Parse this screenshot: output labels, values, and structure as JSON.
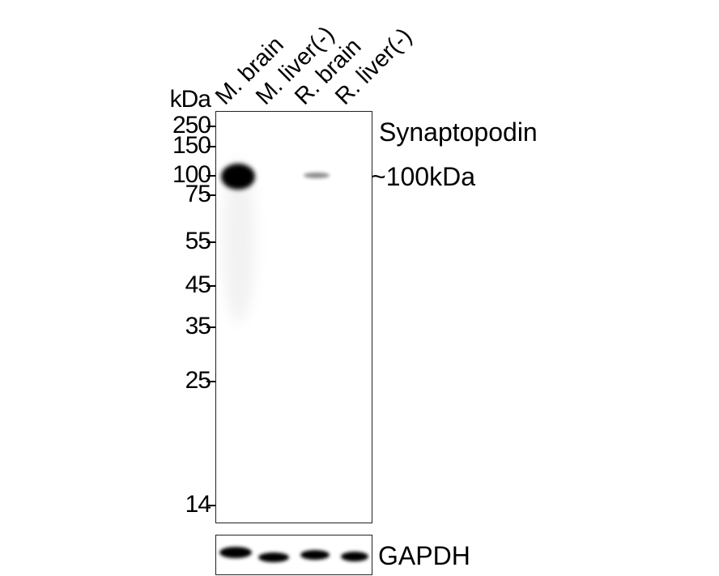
{
  "unit_label": "kDa",
  "lanes": [
    "M. brain",
    "M. liver(-)",
    "R. brain",
    "R. liver(-)"
  ],
  "markers": [
    "250",
    "150",
    "100",
    "75",
    "55",
    "45",
    "35",
    "25",
    "14"
  ],
  "target": {
    "name": "Synaptopodin",
    "size": "~100kDa"
  },
  "loading_control": "GAPDH"
}
